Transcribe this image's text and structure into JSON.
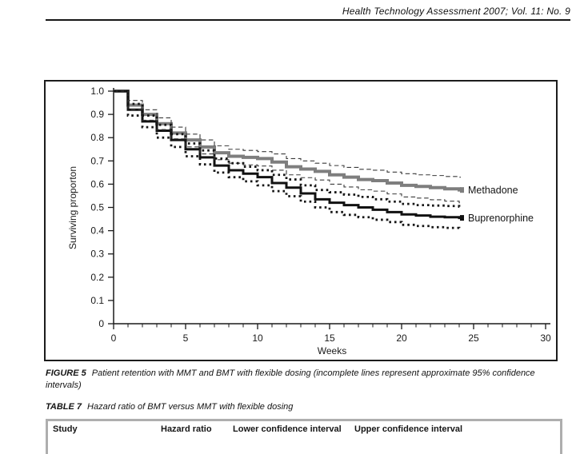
{
  "page": {
    "header": {
      "journal_line": "Health Technology Assessment 2007; Vol. 11: No. 9"
    },
    "figure": {
      "caption_label": "FIGURE 5",
      "caption_text": "Patient retention with MMT and BMT with flexible dosing (incomplete lines represent approximate 95% confidence intervals)"
    },
    "table": {
      "caption_label": "TABLE 7",
      "caption_text": "Hazard ratio of BMT versus MMT with flexible dosing",
      "columns": [
        "Study",
        "Hazard ratio",
        "Lower confidence interval",
        "Upper confidence interval"
      ]
    }
  },
  "chart_data": {
    "type": "line",
    "subtype": "kaplan-meier-step",
    "title": "",
    "xlabel": "Weeks",
    "ylabel": "Surviving proporton",
    "xlim": [
      0,
      30
    ],
    "ylim": [
      0,
      1.0
    ],
    "grid": false,
    "legend_position": "right-of-curve-ends",
    "xticks_major": [
      0,
      5,
      10,
      15,
      20,
      25,
      30
    ],
    "xticks_minor_every": 1,
    "yticks": [
      "1.0",
      "0.9",
      "0.8",
      "0.7",
      "0.6",
      "0.5",
      "0.4",
      "0.3",
      "0.2",
      "0.1",
      "0"
    ],
    "x_weeks": [
      0,
      1,
      2,
      3,
      4,
      5,
      6,
      7,
      8,
      9,
      10,
      11,
      12,
      13,
      14,
      15,
      16,
      17,
      18,
      19,
      20,
      21,
      22,
      23,
      24
    ],
    "series": [
      {
        "name": "Methadone",
        "color": "#7e7e7e",
        "style": "solid",
        "width": 4,
        "values": [
          1.0,
          0.94,
          0.9,
          0.86,
          0.82,
          0.79,
          0.76,
          0.735,
          0.72,
          0.715,
          0.71,
          0.695,
          0.675,
          0.665,
          0.655,
          0.64,
          0.63,
          0.62,
          0.615,
          0.605,
          0.595,
          0.59,
          0.585,
          0.58,
          0.575
        ]
      },
      {
        "name": "Buprenorphine",
        "color": "#111111",
        "style": "solid",
        "width": 3,
        "values": [
          1.0,
          0.92,
          0.87,
          0.83,
          0.79,
          0.75,
          0.715,
          0.68,
          0.66,
          0.645,
          0.63,
          0.605,
          0.585,
          0.56,
          0.535,
          0.52,
          0.51,
          0.5,
          0.49,
          0.48,
          0.47,
          0.465,
          0.46,
          0.458,
          0.455
        ]
      },
      {
        "name": "Methadone upper 95% CI",
        "color": "#3a3a3a",
        "style": "dashed",
        "width": 1.1,
        "values": [
          1.0,
          0.96,
          0.92,
          0.885,
          0.845,
          0.815,
          0.79,
          0.765,
          0.75,
          0.745,
          0.74,
          0.73,
          0.71,
          0.7,
          0.69,
          0.68,
          0.672,
          0.664,
          0.66,
          0.652,
          0.645,
          0.64,
          0.637,
          0.633,
          0.63
        ]
      },
      {
        "name": "Methadone lower 95% CI",
        "color": "#3a3a3a",
        "style": "dashed",
        "width": 1.1,
        "values": [
          1.0,
          0.92,
          0.875,
          0.835,
          0.795,
          0.76,
          0.73,
          0.705,
          0.69,
          0.683,
          0.678,
          0.66,
          0.64,
          0.628,
          0.618,
          0.6,
          0.588,
          0.576,
          0.57,
          0.558,
          0.545,
          0.54,
          0.533,
          0.527,
          0.52
        ]
      },
      {
        "name": "Buprenorphine upper 95% CI",
        "color": "#161616",
        "style": "dotted",
        "width": 2.8,
        "values": [
          1.0,
          0.945,
          0.895,
          0.855,
          0.815,
          0.775,
          0.745,
          0.71,
          0.69,
          0.675,
          0.66,
          0.64,
          0.62,
          0.595,
          0.575,
          0.565,
          0.555,
          0.545,
          0.535,
          0.525,
          0.515,
          0.51,
          0.508,
          0.506,
          0.503
        ]
      },
      {
        "name": "Buprenorphine lower 95% CI",
        "color": "#161616",
        "style": "dotted",
        "width": 2.8,
        "values": [
          1.0,
          0.895,
          0.845,
          0.8,
          0.76,
          0.72,
          0.685,
          0.65,
          0.63,
          0.612,
          0.595,
          0.57,
          0.548,
          0.525,
          0.5,
          0.48,
          0.468,
          0.458,
          0.447,
          0.437,
          0.425,
          0.42,
          0.415,
          0.412,
          0.405
        ]
      }
    ],
    "legend": [
      {
        "label": "Methadone",
        "series": 0
      },
      {
        "label": "Buprenorphine",
        "series": 1
      }
    ]
  }
}
